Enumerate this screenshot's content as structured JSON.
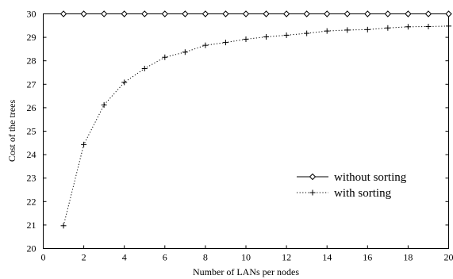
{
  "chart_data": {
    "type": "line",
    "title": "",
    "xlabel": "Number of LANs per nodes",
    "ylabel": "Cost of the trees",
    "xlim": [
      0,
      20
    ],
    "ylim": [
      20,
      30
    ],
    "x_ticks": [
      0,
      2,
      4,
      6,
      8,
      10,
      12,
      14,
      16,
      18,
      20
    ],
    "y_ticks": [
      20,
      21,
      22,
      23,
      24,
      25,
      26,
      27,
      28,
      29,
      30
    ],
    "grid": false,
    "legend_position": "center-right",
    "series": [
      {
        "name": "without sorting",
        "marker": "diamond",
        "line_style": "solid",
        "color": "#000000",
        "x": [
          1,
          2,
          3,
          4,
          5,
          6,
          7,
          8,
          9,
          10,
          11,
          12,
          13,
          14,
          15,
          16,
          17,
          18,
          19,
          20
        ],
        "y": [
          30,
          30,
          30,
          30,
          30,
          30,
          30,
          30,
          30,
          30,
          30,
          30,
          30,
          30,
          30,
          30,
          30,
          30,
          30,
          30
        ]
      },
      {
        "name": "with sorting",
        "marker": "plus",
        "line_style": "dotted",
        "color": "#000000",
        "x": [
          1,
          2,
          3,
          4,
          5,
          6,
          7,
          8,
          9,
          10,
          11,
          12,
          13,
          14,
          15,
          16,
          17,
          18,
          19,
          20
        ],
        "y": [
          20.97,
          24.43,
          26.12,
          27.08,
          27.67,
          28.15,
          28.37,
          28.66,
          28.78,
          28.92,
          29.02,
          29.09,
          29.17,
          29.27,
          29.31,
          29.33,
          29.4,
          29.45,
          29.46,
          29.48
        ]
      }
    ]
  }
}
